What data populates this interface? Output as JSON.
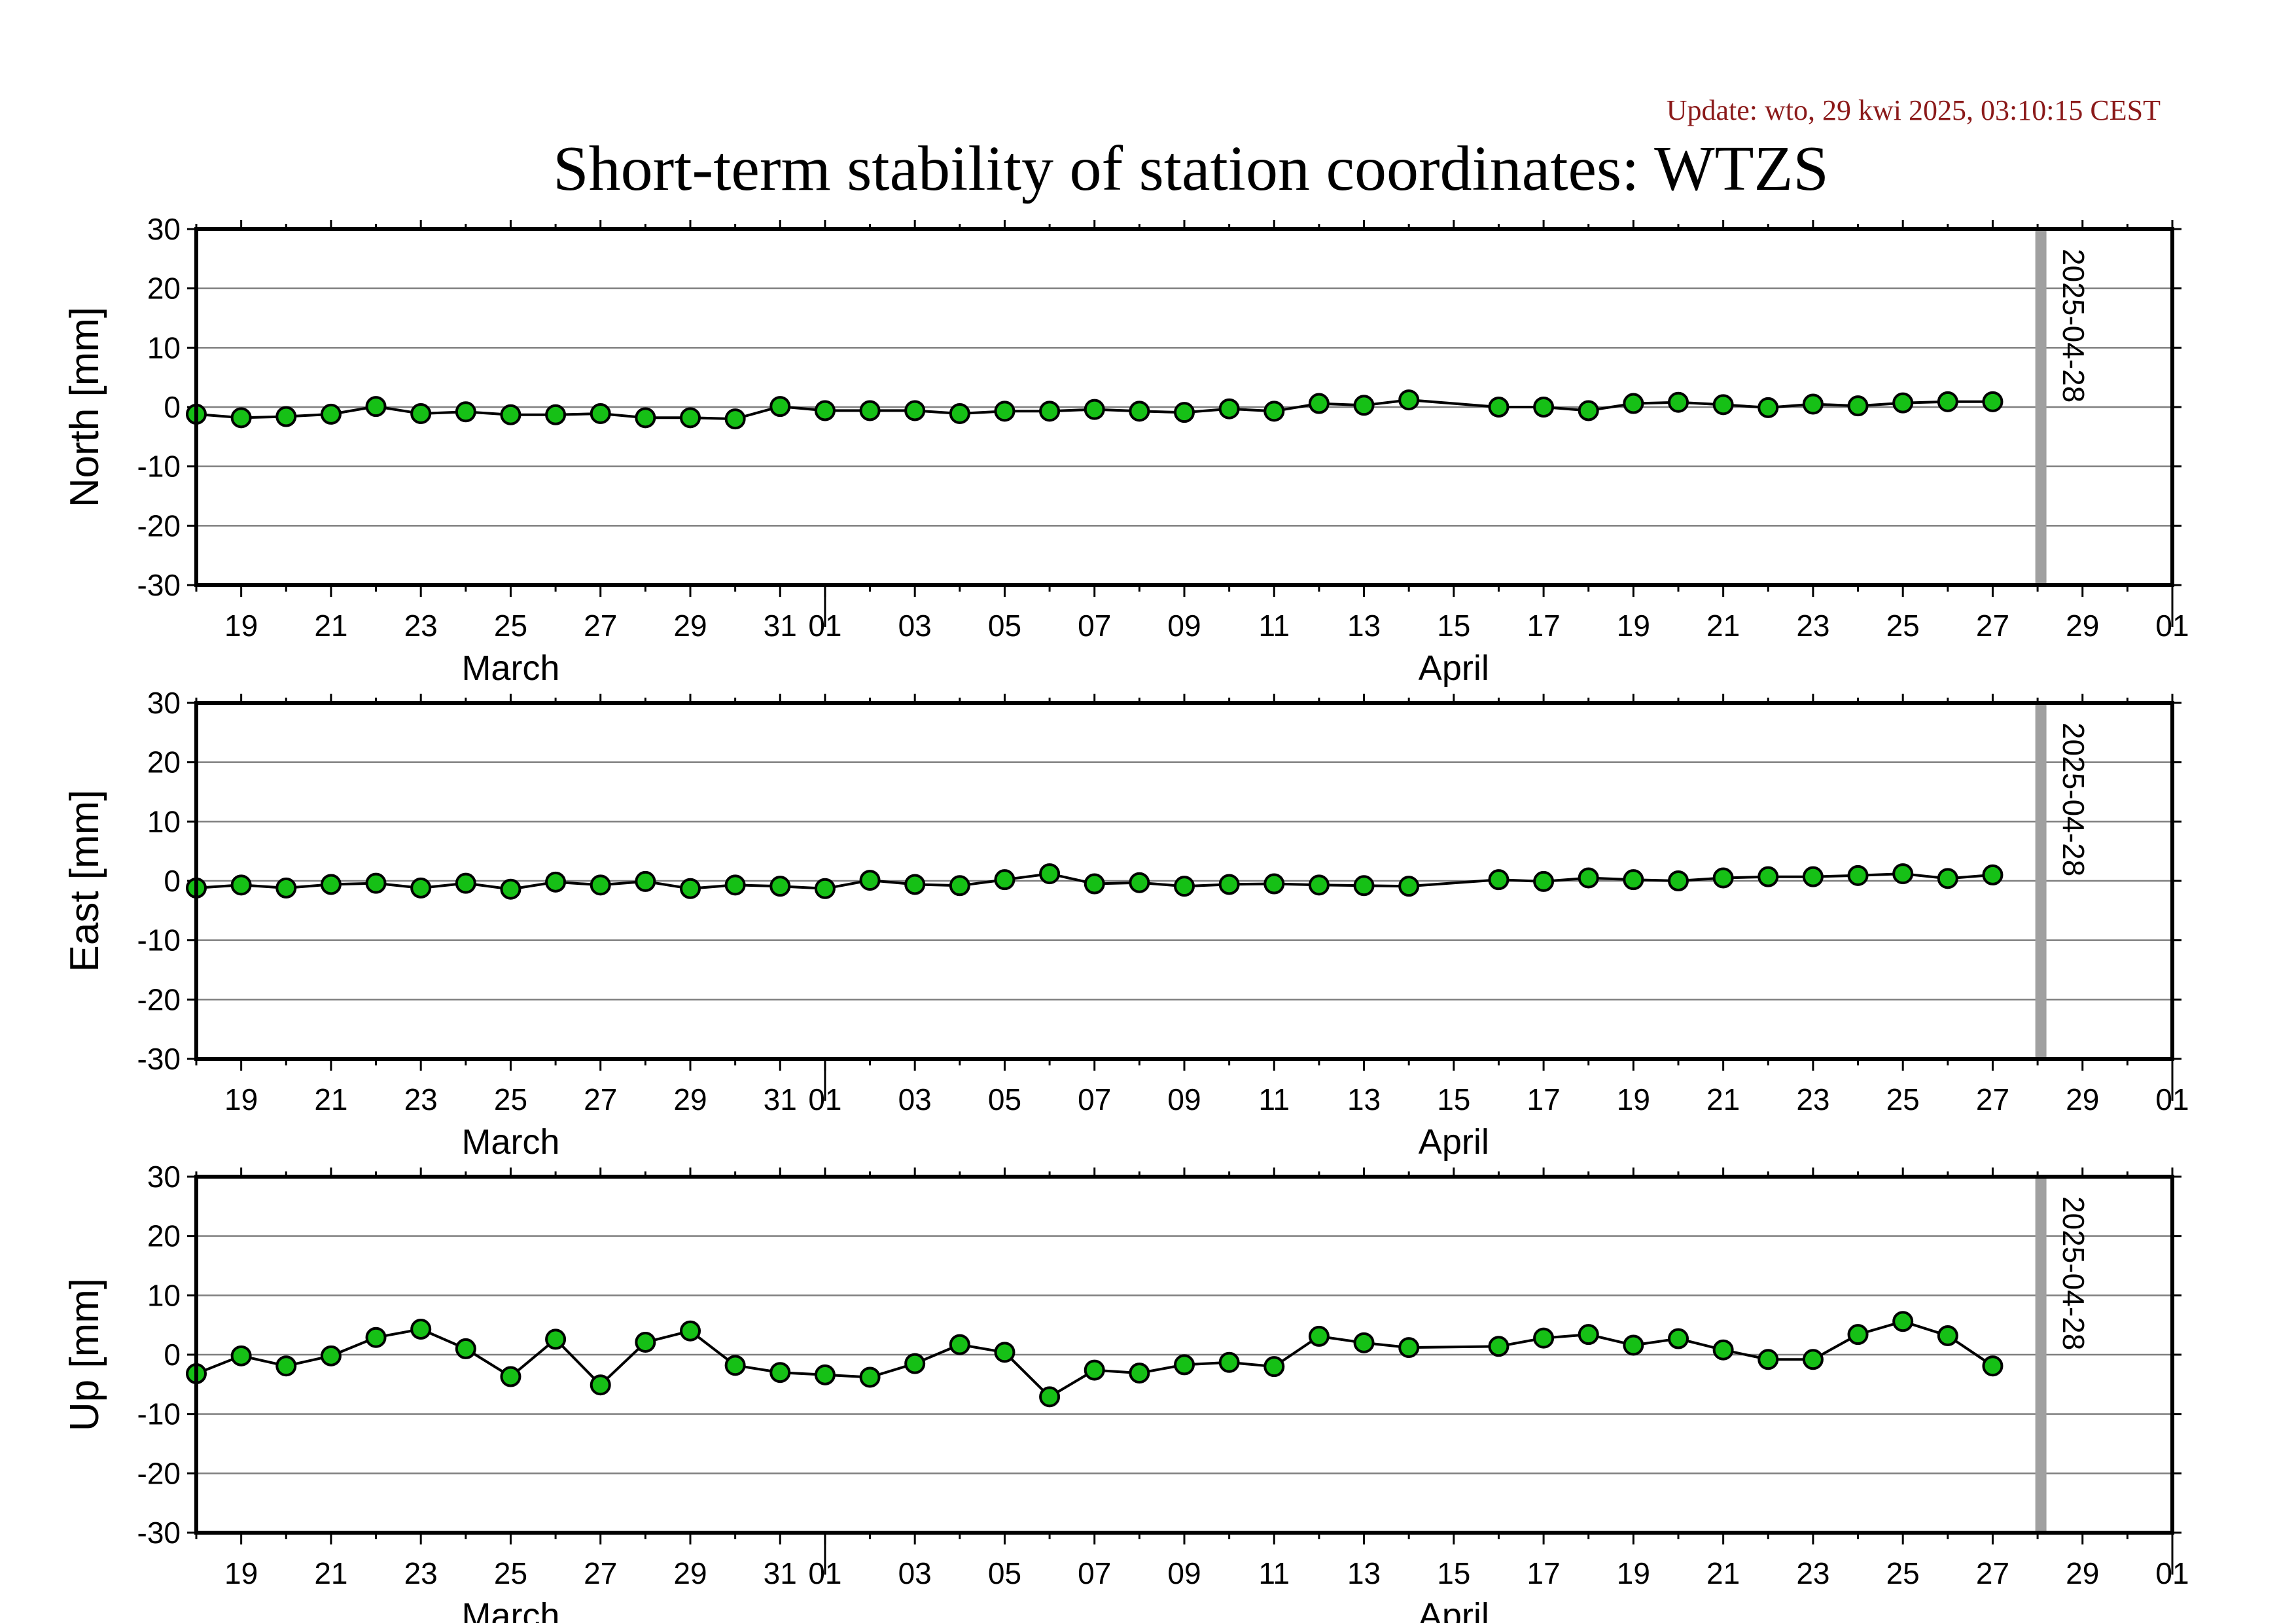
{
  "update_text": "Update: wto, 29 kwi 2025, 03:10:15 CEST",
  "title": "Short-term stability of station coordinates: WTZS",
  "colors": {
    "point_fill": "#16c016",
    "point_stroke": "#000000",
    "line": "#000000",
    "grid": "#7f7f7f",
    "marker": "#a0a0a0",
    "update_text": "#8b1a1a"
  },
  "x_axis": {
    "tick_labels": [
      "19",
      "21",
      "23",
      "25",
      "27",
      "29",
      "31",
      "01",
      "03",
      "05",
      "07",
      "09",
      "11",
      "13",
      "15",
      "17",
      "19",
      "21",
      "23",
      "25",
      "27",
      "29",
      "01"
    ],
    "month_labels": [
      "March",
      "April"
    ]
  },
  "marker": {
    "date": "2025-04-28",
    "label": "2025-04-28"
  },
  "chart_data": [
    {
      "type": "line",
      "ylabel": "North [mm]",
      "ylim": [
        -30,
        30
      ],
      "yticks": [
        "30",
        "20",
        "10",
        "0",
        "-10",
        "-20",
        "-30"
      ],
      "grid": true,
      "x_start": "2025-03-18",
      "x_end": "2025-05-01",
      "x": [
        "2025-03-18",
        "2025-03-19",
        "2025-03-20",
        "2025-03-21",
        "2025-03-22",
        "2025-03-23",
        "2025-03-24",
        "2025-03-25",
        "2025-03-26",
        "2025-03-27",
        "2025-03-28",
        "2025-03-29",
        "2025-03-30",
        "2025-03-31",
        "2025-04-01",
        "2025-04-02",
        "2025-04-03",
        "2025-04-04",
        "2025-04-05",
        "2025-04-06",
        "2025-04-07",
        "2025-04-08",
        "2025-04-09",
        "2025-04-10",
        "2025-04-11",
        "2025-04-12",
        "2025-04-13",
        "2025-04-14",
        "2025-04-16",
        "2025-04-17",
        "2025-04-18",
        "2025-04-19",
        "2025-04-20",
        "2025-04-21",
        "2025-04-22",
        "2025-04-23",
        "2025-04-24",
        "2025-04-25",
        "2025-04-26",
        "2025-04-27"
      ],
      "values": [
        -1.2,
        -1.8,
        -1.6,
        -1.2,
        0.1,
        -1.1,
        -0.8,
        -1.3,
        -1.3,
        -1.1,
        -1.8,
        -1.8,
        -2.0,
        0.1,
        -0.6,
        -0.6,
        -0.6,
        -1.1,
        -0.7,
        -0.7,
        -0.4,
        -0.7,
        -0.9,
        -0.3,
        -0.7,
        0.6,
        0.3,
        1.2,
        0.0,
        0.0,
        -0.6,
        0.6,
        0.8,
        0.4,
        -0.1,
        0.5,
        0.2,
        0.7,
        0.9,
        0.9
      ]
    },
    {
      "type": "line",
      "ylabel": "East [mm]",
      "ylim": [
        -30,
        30
      ],
      "yticks": [
        "30",
        "20",
        "10",
        "0",
        "-10",
        "-20",
        "-30"
      ],
      "grid": true,
      "x_start": "2025-03-18",
      "x_end": "2025-05-01",
      "x": [
        "2025-03-18",
        "2025-03-19",
        "2025-03-20",
        "2025-03-21",
        "2025-03-22",
        "2025-03-23",
        "2025-03-24",
        "2025-03-25",
        "2025-03-26",
        "2025-03-27",
        "2025-03-28",
        "2025-03-29",
        "2025-03-30",
        "2025-03-31",
        "2025-04-01",
        "2025-04-02",
        "2025-04-03",
        "2025-04-04",
        "2025-04-05",
        "2025-04-06",
        "2025-04-07",
        "2025-04-08",
        "2025-04-09",
        "2025-04-10",
        "2025-04-11",
        "2025-04-12",
        "2025-04-13",
        "2025-04-14",
        "2025-04-16",
        "2025-04-17",
        "2025-04-18",
        "2025-04-19",
        "2025-04-20",
        "2025-04-21",
        "2025-04-22",
        "2025-04-23",
        "2025-04-24",
        "2025-04-25",
        "2025-04-26",
        "2025-04-27"
      ],
      "values": [
        -1.2,
        -0.7,
        -1.2,
        -0.6,
        -0.4,
        -1.2,
        -0.4,
        -1.4,
        -0.2,
        -0.7,
        -0.1,
        -1.3,
        -0.7,
        -0.9,
        -1.3,
        0.1,
        -0.6,
        -0.8,
        0.2,
        1.2,
        -0.5,
        -0.3,
        -0.9,
        -0.6,
        -0.5,
        -0.7,
        -0.8,
        -0.9,
        0.2,
        -0.1,
        0.5,
        0.2,
        0.0,
        0.5,
        0.7,
        0.7,
        0.9,
        1.2,
        0.4,
        1.0
      ]
    },
    {
      "type": "line",
      "ylabel": "Up [mm]",
      "ylim": [
        -30,
        30
      ],
      "yticks": [
        "30",
        "20",
        "10",
        "0",
        "-10",
        "-20",
        "-30"
      ],
      "grid": true,
      "x_start": "2025-03-18",
      "x_end": "2025-05-01",
      "x": [
        "2025-03-18",
        "2025-03-19",
        "2025-03-20",
        "2025-03-21",
        "2025-03-22",
        "2025-03-23",
        "2025-03-24",
        "2025-03-25",
        "2025-03-26",
        "2025-03-27",
        "2025-03-28",
        "2025-03-29",
        "2025-03-30",
        "2025-03-31",
        "2025-04-01",
        "2025-04-02",
        "2025-04-03",
        "2025-04-04",
        "2025-04-05",
        "2025-04-06",
        "2025-04-07",
        "2025-04-08",
        "2025-04-09",
        "2025-04-10",
        "2025-04-11",
        "2025-04-12",
        "2025-04-13",
        "2025-04-14",
        "2025-04-16",
        "2025-04-17",
        "2025-04-18",
        "2025-04-19",
        "2025-04-20",
        "2025-04-21",
        "2025-04-22",
        "2025-04-23",
        "2025-04-24",
        "2025-04-25",
        "2025-04-26",
        "2025-04-27"
      ],
      "values": [
        -3.2,
        -0.2,
        -1.9,
        -0.2,
        2.9,
        4.3,
        1.0,
        -3.7,
        2.6,
        -5.1,
        2.1,
        4.0,
        -1.8,
        -3.0,
        -3.4,
        -3.8,
        -1.5,
        1.7,
        0.4,
        -7.1,
        -2.6,
        -3.1,
        -1.7,
        -1.3,
        -2.0,
        3.1,
        2.0,
        1.2,
        1.4,
        2.8,
        3.4,
        1.6,
        2.7,
        0.8,
        -0.8,
        -0.8,
        3.4,
        5.6,
        3.2,
        -1.9
      ]
    }
  ]
}
